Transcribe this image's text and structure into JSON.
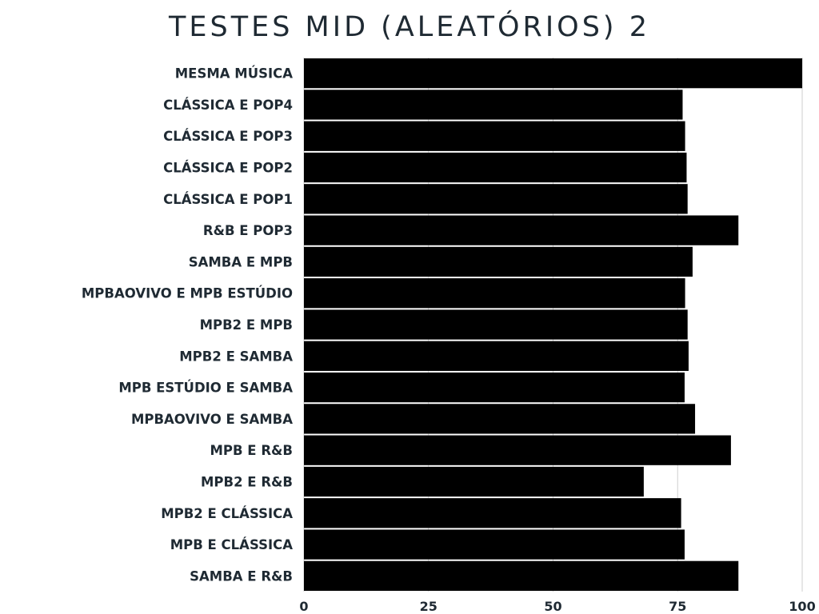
{
  "chart_data": {
    "type": "bar",
    "orientation": "horizontal",
    "title": "TESTES MID (ALEATÓRIOS) 2",
    "xlabel": "",
    "ylabel": "",
    "xlim": [
      0,
      100
    ],
    "x_ticks": [
      "0",
      "25",
      "50",
      "75",
      "100"
    ],
    "grid": true,
    "bar_color": "#000000",
    "categories": [
      "MESMA MÚSICA",
      "CLÁSSICA E POP4",
      "CLÁSSICA E POP3",
      "CLÁSSICA E POP2",
      "CLÁSSICA E POP1",
      "R&B E POP3",
      "SAMBA E MPB",
      "MPBAOVIVO E MPB ESTÚDIO",
      "MPB2 E MPB",
      "MPB2 E SAMBA",
      "MPB ESTÚDIO E SAMBA",
      "MPBAOVIVO E SAMBA",
      "MPB E R&B",
      "MPB2 E R&B",
      "MPB2 E CLÁSSICA",
      "MPB E CLÁSSICA",
      "SAMBA E R&B"
    ],
    "values": [
      100,
      76,
      76.5,
      76.8,
      77,
      87.2,
      78,
      76.5,
      77,
      77.2,
      76.4,
      78.5,
      85.7,
      68.2,
      75.7,
      76.4,
      87.2
    ]
  }
}
